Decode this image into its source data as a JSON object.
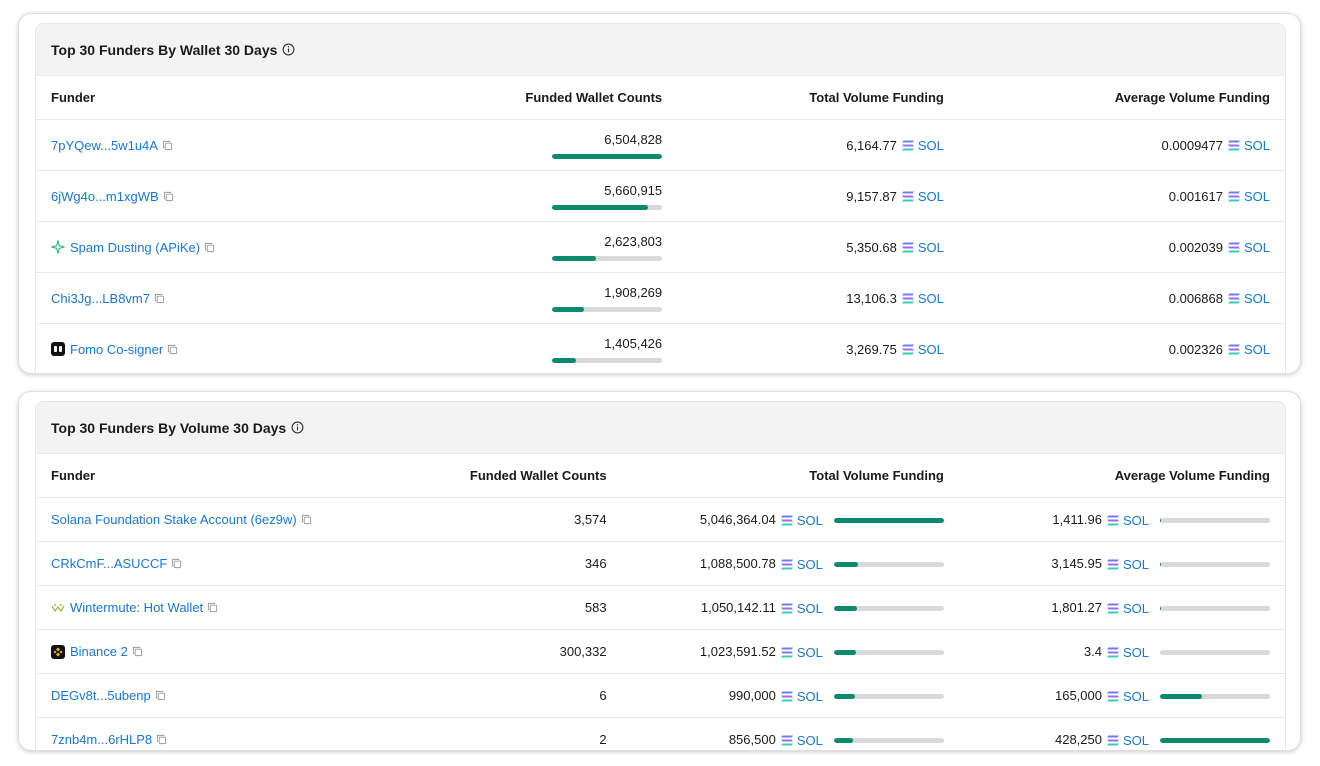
{
  "wallet_table": {
    "title": "Top 30 Funders By Wallet 30 Days",
    "columns": {
      "funder": "Funder",
      "count": "Funded Wallet Counts",
      "total": "Total Volume Funding",
      "avg": "Average Volume Funding"
    },
    "rows": [
      {
        "funder": "7pYQew...5w1u4A",
        "count": "6,504,828",
        "count_pct": 1.0,
        "total": "6,164.77",
        "avg": "0.0009477",
        "unit": "SOL"
      },
      {
        "funder": "6jWg4o...m1xgWB",
        "count": "5,660,915",
        "count_pct": 0.87,
        "total": "9,157.87",
        "avg": "0.001617",
        "unit": "SOL"
      },
      {
        "funder": "Spam Dusting (APiKe)",
        "icon": "sparkle-icon",
        "count": "2,623,803",
        "count_pct": 0.4,
        "total": "5,350.68",
        "avg": "0.002039",
        "unit": "SOL"
      },
      {
        "funder": "Chi3Jg...LB8vm7",
        "count": "1,908,269",
        "count_pct": 0.29,
        "total": "13,106.3",
        "avg": "0.006868",
        "unit": "SOL"
      },
      {
        "funder": "Fomo Co-signer",
        "icon": "fomo-icon",
        "count": "1,405,426",
        "count_pct": 0.22,
        "total": "3,269.75",
        "avg": "0.002326",
        "unit": "SOL"
      }
    ]
  },
  "volume_table": {
    "title": "Top 30 Funders By Volume 30 Days",
    "columns": {
      "funder": "Funder",
      "count": "Funded Wallet Counts",
      "total": "Total Volume Funding",
      "avg": "Average Volume Funding"
    },
    "rows": [
      {
        "funder": "Solana Foundation Stake Account (6ez9w)",
        "count": "3,574",
        "total": "5,046,364.04",
        "total_pct": 1.0,
        "avg": "1,411.96",
        "avg_pct": 0.003,
        "unit": "SOL"
      },
      {
        "funder": "CRkCmF...ASUCCF",
        "count": "346",
        "total": "1,088,500.78",
        "total_pct": 0.22,
        "avg": "3,145.95",
        "avg_pct": 0.007,
        "unit": "SOL"
      },
      {
        "funder": "Wintermute: Hot Wallet",
        "icon": "wintermute-icon",
        "count": "583",
        "total": "1,050,142.11",
        "total_pct": 0.21,
        "avg": "1,801.27",
        "avg_pct": 0.004,
        "unit": "SOL"
      },
      {
        "funder": "Binance 2",
        "icon": "binance-icon",
        "count": "300,332",
        "total": "1,023,591.52",
        "total_pct": 0.2,
        "avg": "3.4",
        "avg_pct": 0.0,
        "unit": "SOL"
      },
      {
        "funder": "DEGv8t...5ubenp",
        "count": "6",
        "total": "990,000",
        "total_pct": 0.196,
        "avg": "165,000",
        "avg_pct": 0.385,
        "unit": "SOL"
      },
      {
        "funder": "7znb4m...6rHLP8",
        "count": "2",
        "total": "856,500",
        "total_pct": 0.17,
        "avg": "428,250",
        "avg_pct": 1.0,
        "unit": "SOL"
      }
    ]
  },
  "colors": {
    "bar_fill": "#0b8a6d",
    "bar_track": "#d9d9d9",
    "link": "#1976d2"
  }
}
